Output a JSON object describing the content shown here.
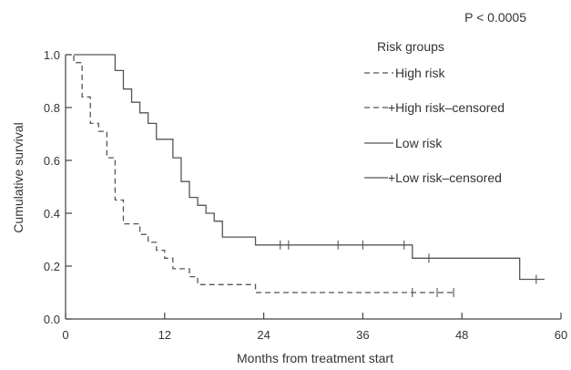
{
  "chart_data": {
    "type": "line",
    "subtype": "kaplan-meier step",
    "xlabel": "Months from treatment start",
    "ylabel": "Cumulative survival",
    "xticks": [
      0,
      12,
      24,
      36,
      48,
      60
    ],
    "yticks": [
      0.0,
      0.2,
      0.4,
      0.6,
      0.8,
      1.0
    ],
    "ytick_labels": [
      "0.0",
      "0.2",
      "0.4",
      "0.6",
      "0.8",
      "1.0"
    ],
    "xlim": [
      0,
      60
    ],
    "ylim": [
      0,
      1
    ],
    "grid": false,
    "annotation": "P < 0.0005",
    "legend": {
      "title": "Risk groups",
      "position": "top-right",
      "entries": [
        {
          "label": "High risk",
          "style": "dashed"
        },
        {
          "label": "+High risk–censored",
          "style": "dashed-censored"
        },
        {
          "label": "Low risk",
          "style": "solid"
        },
        {
          "label": "+Low risk–censored",
          "style": "solid-censored"
        }
      ]
    },
    "series": [
      {
        "name": "High risk",
        "dash": "dashed",
        "steps": [
          [
            0,
            1.0
          ],
          [
            1,
            0.97
          ],
          [
            2,
            0.84
          ],
          [
            3,
            0.74
          ],
          [
            4,
            0.71
          ],
          [
            5,
            0.61
          ],
          [
            6,
            0.45
          ],
          [
            7,
            0.36
          ],
          [
            9,
            0.32
          ],
          [
            10,
            0.29
          ],
          [
            11,
            0.26
          ],
          [
            12,
            0.23
          ],
          [
            13,
            0.19
          ],
          [
            15,
            0.16
          ],
          [
            16,
            0.13
          ],
          [
            23,
            0.1
          ],
          [
            47,
            0.1
          ]
        ],
        "censored": [
          [
            42,
            0.1
          ],
          [
            45,
            0.1
          ],
          [
            47,
            0.1
          ]
        ]
      },
      {
        "name": "Low risk",
        "dash": "solid",
        "steps": [
          [
            1,
            1.0
          ],
          [
            6,
            0.94
          ],
          [
            7,
            0.87
          ],
          [
            8,
            0.82
          ],
          [
            9,
            0.78
          ],
          [
            10,
            0.74
          ],
          [
            11,
            0.68
          ],
          [
            13,
            0.61
          ],
          [
            14,
            0.52
          ],
          [
            15,
            0.46
          ],
          [
            16,
            0.43
          ],
          [
            17,
            0.4
          ],
          [
            18,
            0.37
          ],
          [
            19,
            0.31
          ],
          [
            23,
            0.28
          ],
          [
            42,
            0.23
          ],
          [
            55,
            0.15
          ],
          [
            58,
            0.15
          ]
        ],
        "censored": [
          [
            26,
            0.28
          ],
          [
            27,
            0.28
          ],
          [
            33,
            0.28
          ],
          [
            36,
            0.28
          ],
          [
            41,
            0.28
          ],
          [
            44,
            0.23
          ],
          [
            57,
            0.15
          ]
        ]
      }
    ]
  }
}
